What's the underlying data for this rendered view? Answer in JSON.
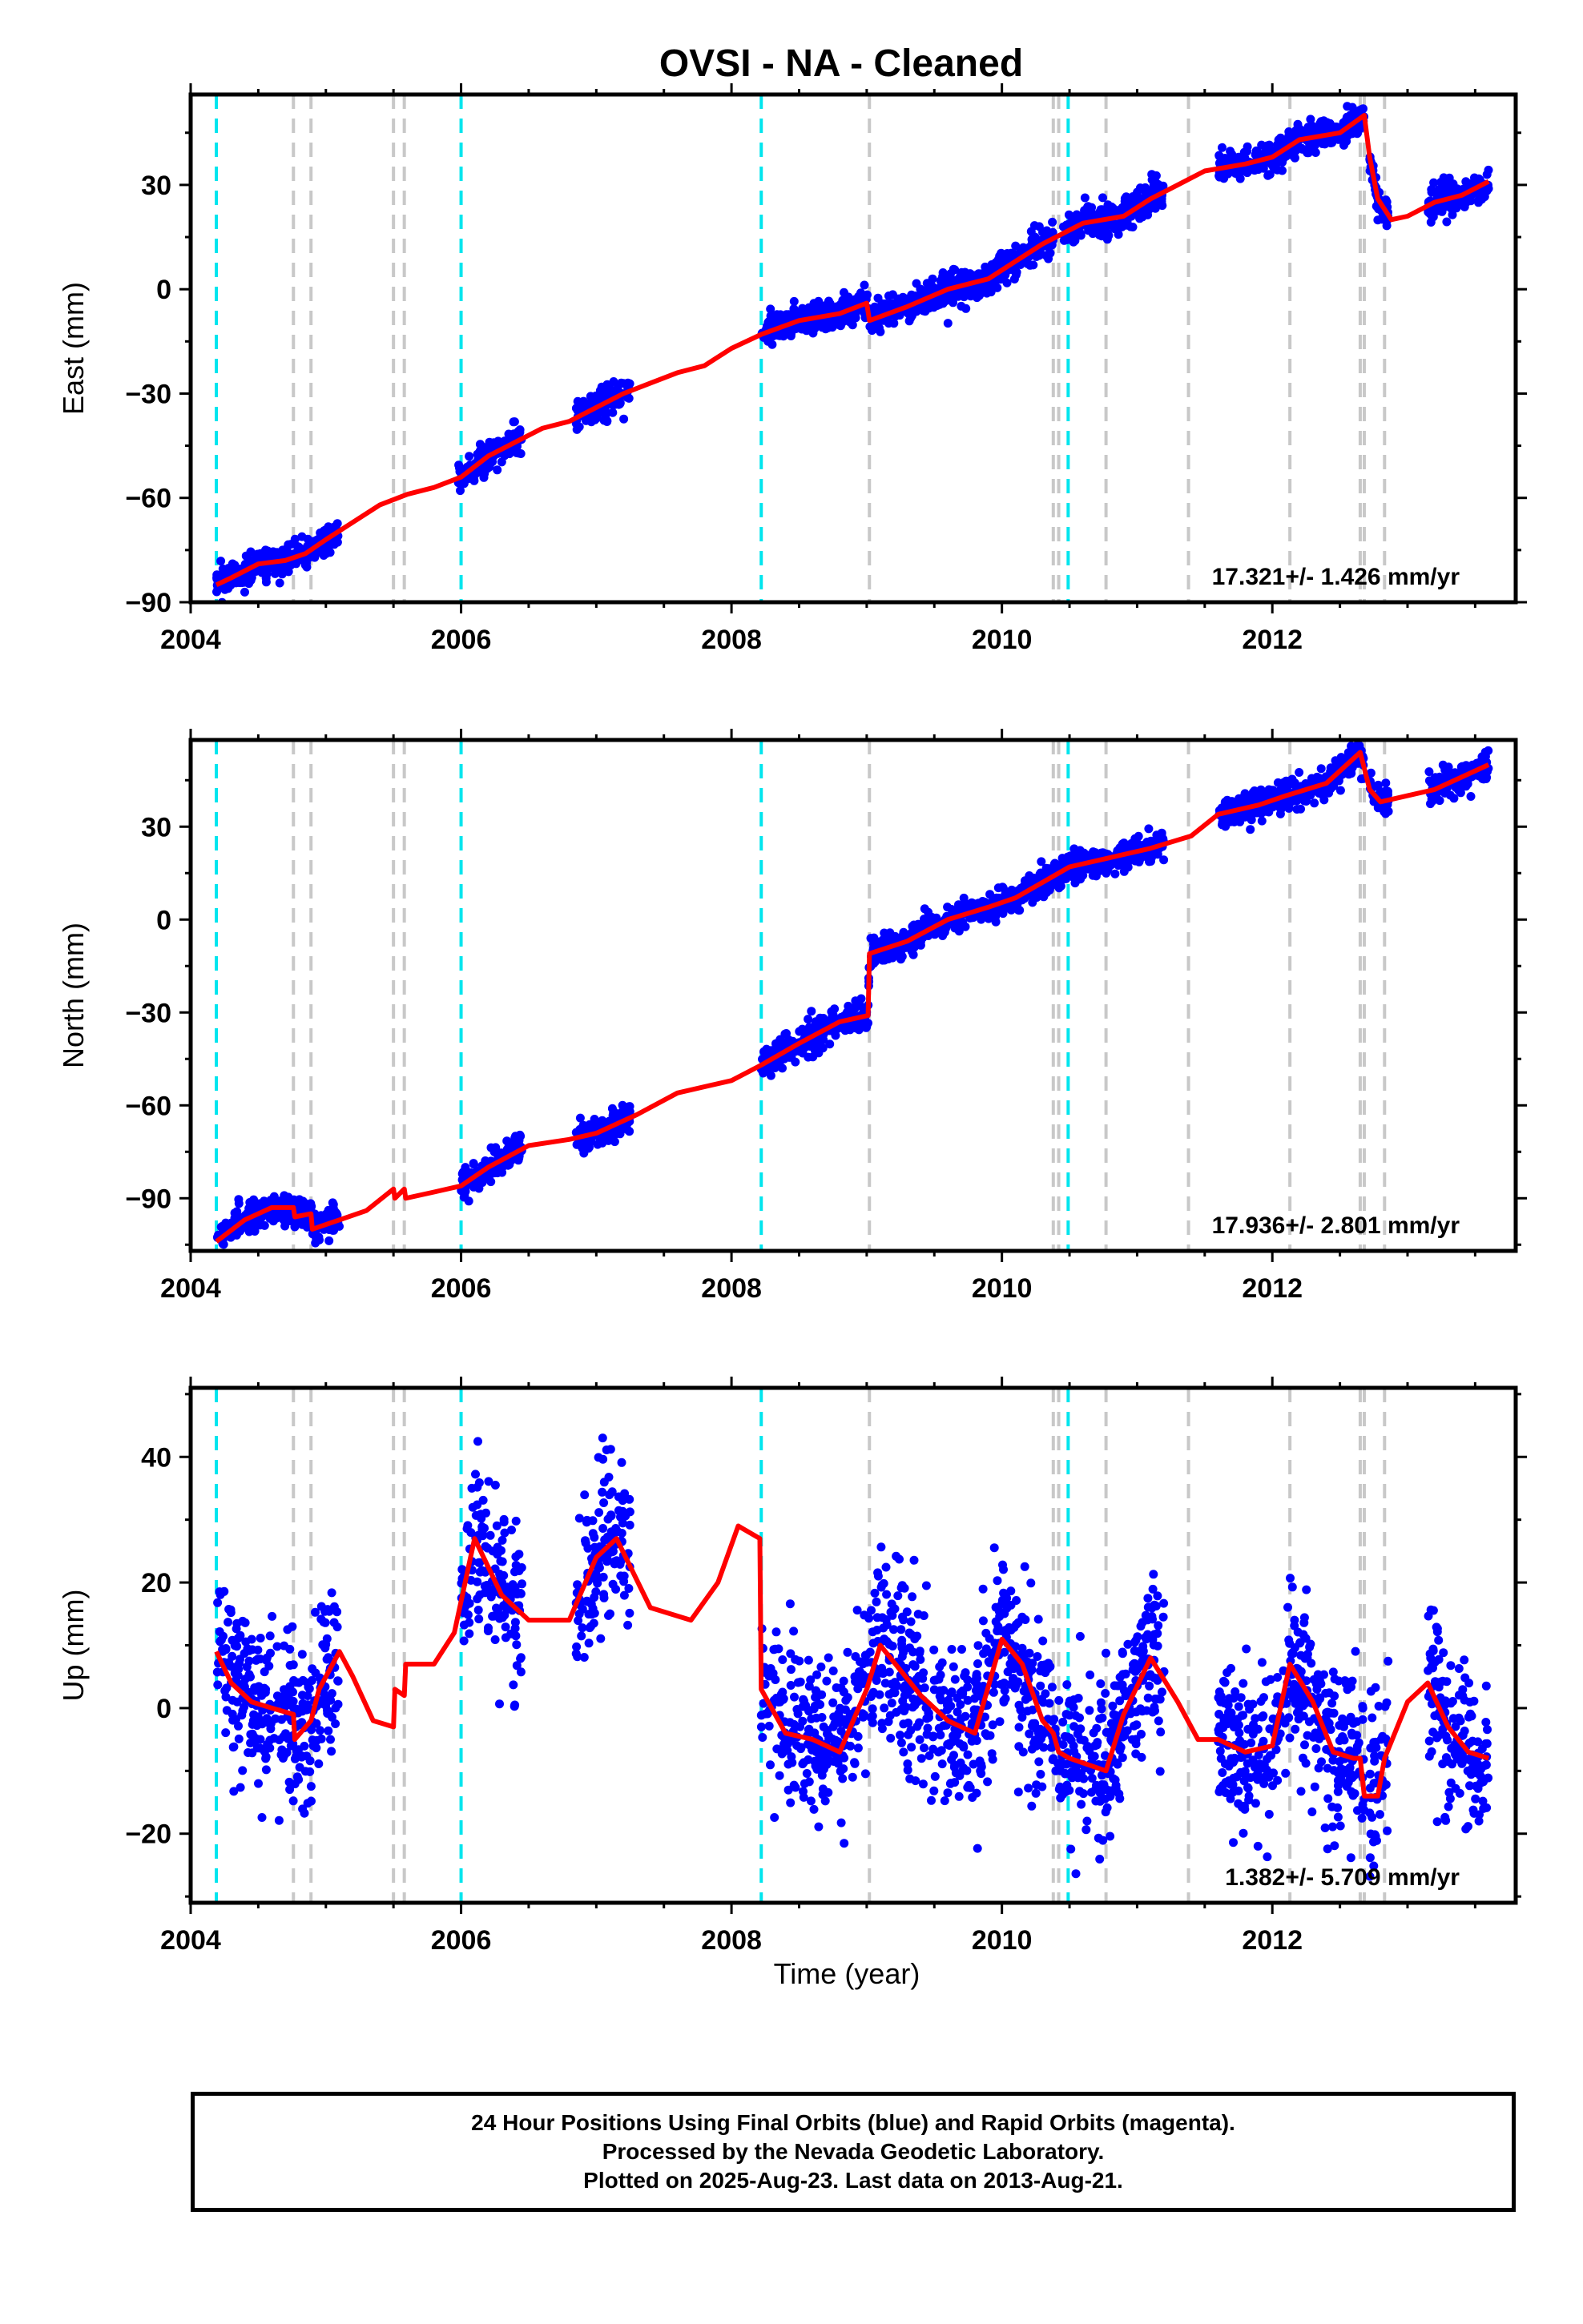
{
  "title": "OVSI  - NA - Cleaned",
  "xlabel": "Time (year)",
  "caption": [
    "24 Hour Positions Using Final Orbits (blue) and Rapid Orbits (magenta).",
    "Processed by the Nevada Geodetic Laboratory.",
    "Plotted on 2025-Aug-23. Last data on 2013-Aug-21."
  ],
  "colors": {
    "data": "#0000ff",
    "model": "#ff0000",
    "cyan_line": "#00e5ee",
    "gray_line": "#c8c8c8"
  },
  "chart_data": [
    {
      "type": "scatter",
      "ylabel": "East (mm)",
      "rate_label": "17.321+/- 1.426 mm/yr",
      "xlim": [
        2004.0,
        2013.8
      ],
      "ylim": [
        -90,
        56
      ],
      "xticks": [
        2004,
        2006,
        2008,
        2010,
        2012
      ],
      "xtick_labels": [
        "2004",
        "2006",
        "2008",
        "2010",
        "2012"
      ],
      "yticks": [
        -90,
        -60,
        -30,
        0,
        30
      ],
      "ytick_labels": [
        "−90",
        "−60",
        "−30",
        "0",
        "30"
      ],
      "cyan_lines": [
        2004.19,
        2006.0,
        2008.22,
        2010.49
      ],
      "gray_lines": [
        2004.76,
        2004.89,
        2005.5,
        2005.58,
        2009.02,
        2010.38,
        2010.42,
        2010.77,
        2011.38,
        2012.13,
        2012.65,
        2012.68,
        2012.83
      ],
      "series": [
        {
          "name": "model",
          "x": [
            2004.19,
            2004.3,
            2004.5,
            2004.7,
            2004.85,
            2005.0,
            2005.2,
            2005.4,
            2005.6,
            2005.8,
            2006.0,
            2006.2,
            2006.4,
            2006.6,
            2006.8,
            2007.0,
            2007.2,
            2007.4,
            2007.6,
            2007.8,
            2008.0,
            2008.22,
            2008.5,
            2008.8,
            2009.0,
            2009.02,
            2009.3,
            2009.6,
            2009.9,
            2010.1,
            2010.3,
            2010.45,
            2010.6,
            2010.9,
            2011.1,
            2011.3,
            2011.5,
            2011.8,
            2012.0,
            2012.2,
            2012.5,
            2012.68,
            2012.72,
            2012.78,
            2012.88,
            2013.0,
            2013.2,
            2013.4,
            2013.6
          ],
          "y": [
            -85,
            -83,
            -79,
            -78,
            -76,
            -72,
            -67,
            -62,
            -59,
            -57,
            -54,
            -48,
            -44,
            -40,
            -38,
            -34,
            -30,
            -27,
            -24,
            -22,
            -17,
            -13,
            -9,
            -7,
            -4,
            -9,
            -5,
            0,
            3,
            8,
            13,
            16,
            19,
            21,
            26,
            30,
            34,
            36,
            38,
            43,
            45,
            50,
            38,
            26,
            20,
            21,
            25,
            27,
            31
          ]
        },
        {
          "name": "data",
          "ranges": [
            [
              2004.19,
              2005.1
            ],
            [
              2005.98,
              2006.45
            ],
            [
              2006.85,
              2007.25
            ],
            [
              2008.22,
              2010.38
            ],
            [
              2010.45,
              2011.2
            ],
            [
              2011.6,
              2012.68
            ],
            [
              2012.72,
              2012.86
            ],
            [
              2013.15,
              2013.6
            ]
          ],
          "noise": 2.2
        }
      ]
    },
    {
      "type": "scatter",
      "ylabel": "North (mm)",
      "rate_label": "17.936+/- 2.801 mm/yr",
      "xlim": [
        2004.0,
        2013.8
      ],
      "ylim": [
        -107,
        58
      ],
      "xticks": [
        2004,
        2006,
        2008,
        2010,
        2012
      ],
      "xtick_labels": [
        "2004",
        "2006",
        "2008",
        "2010",
        "2012"
      ],
      "yticks": [
        -90,
        -60,
        -30,
        0,
        30
      ],
      "ytick_labels": [
        "−90",
        "−60",
        "−30",
        "0",
        "30"
      ],
      "cyan_lines": [
        2004.19,
        2006.0,
        2008.22,
        2010.49
      ],
      "gray_lines": [
        2004.76,
        2004.89,
        2005.5,
        2005.58,
        2009.02,
        2010.38,
        2010.42,
        2010.77,
        2011.38,
        2012.13,
        2012.65,
        2012.68,
        2012.83
      ],
      "series": [
        {
          "name": "model",
          "x": [
            2004.19,
            2004.4,
            2004.6,
            2004.76,
            2004.77,
            2004.89,
            2004.9,
            2005.1,
            2005.3,
            2005.5,
            2005.51,
            2005.58,
            2005.59,
            2005.8,
            2006.0,
            2006.2,
            2006.5,
            2006.8,
            2007.0,
            2007.3,
            2007.6,
            2008.0,
            2008.22,
            2008.5,
            2008.8,
            2009.01,
            2009.02,
            2009.3,
            2009.6,
            2009.9,
            2010.1,
            2010.3,
            2010.5,
            2010.8,
            2011.1,
            2011.4,
            2011.6,
            2011.9,
            2012.1,
            2012.4,
            2012.65,
            2012.72,
            2012.8,
            2013.0,
            2013.2,
            2013.4,
            2013.6
          ],
          "y": [
            -104,
            -97,
            -93,
            -93,
            -96,
            -95,
            -100,
            -97,
            -94,
            -87,
            -90,
            -87,
            -90,
            -88,
            -86,
            -80,
            -73,
            -71,
            -69,
            -63,
            -56,
            -52,
            -47,
            -40,
            -33,
            -31,
            -11,
            -7,
            0,
            4,
            7,
            12,
            17,
            20,
            23,
            27,
            34,
            37,
            40,
            44,
            54,
            42,
            38,
            40,
            42,
            46,
            50
          ]
        },
        {
          "name": "data",
          "ranges": [
            [
              2004.19,
              2005.1
            ],
            [
              2006.0,
              2006.45
            ],
            [
              2006.85,
              2007.25
            ],
            [
              2008.22,
              2011.2
            ],
            [
              2011.6,
              2012.68
            ],
            [
              2012.72,
              2012.86
            ],
            [
              2013.15,
              2013.6
            ]
          ],
          "noise": 2.3
        }
      ]
    },
    {
      "type": "scatter",
      "ylabel": "Up (mm)",
      "rate_label": "1.382+/- 5.709 mm/yr",
      "xlim": [
        2004.0,
        2013.8
      ],
      "ylim": [
        -31,
        51
      ],
      "xticks": [
        2004,
        2006,
        2008,
        2010,
        2012
      ],
      "xtick_labels": [
        "2004",
        "2006",
        "2008",
        "2010",
        "2012"
      ],
      "yticks": [
        -20,
        0,
        20,
        40
      ],
      "ytick_labels": [
        "−20",
        "0",
        "20",
        "40"
      ],
      "cyan_lines": [
        2004.19,
        2006.0,
        2008.22,
        2010.49
      ],
      "gray_lines": [
        2004.76,
        2004.89,
        2005.5,
        2005.58,
        2009.02,
        2010.38,
        2010.42,
        2010.77,
        2011.38,
        2012.13,
        2012.65,
        2012.68,
        2012.83
      ],
      "series": [
        {
          "name": "model",
          "x": [
            2004.19,
            2004.3,
            2004.45,
            2004.6,
            2004.76,
            2004.77,
            2004.89,
            2004.95,
            2005.1,
            2005.2,
            2005.35,
            2005.5,
            2005.51,
            2005.58,
            2005.59,
            2005.8,
            2005.95,
            2006.1,
            2006.3,
            2006.5,
            2006.8,
            2007.0,
            2007.15,
            2007.4,
            2007.7,
            2007.9,
            2008.05,
            2008.21,
            2008.22,
            2008.4,
            2008.6,
            2008.8,
            2009.0,
            2009.1,
            2009.4,
            2009.6,
            2009.8,
            2010.0,
            2010.15,
            2010.3,
            2010.38,
            2010.42,
            2010.5,
            2010.77,
            2010.9,
            2011.1,
            2011.3,
            2011.45,
            2011.6,
            2011.8,
            2012.0,
            2012.13,
            2012.3,
            2012.45,
            2012.6,
            2012.65,
            2012.68,
            2012.78,
            2012.83,
            2013.0,
            2013.15,
            2013.3,
            2013.45,
            2013.6
          ],
          "y": [
            9,
            4,
            1,
            0,
            -1,
            -5,
            -2,
            3,
            9,
            5,
            -2,
            -3,
            3,
            2,
            7,
            7,
            12,
            27,
            18,
            14,
            14,
            24,
            27,
            16,
            14,
            20,
            29,
            27,
            3,
            -4,
            -5,
            -7,
            3,
            10,
            2,
            -2,
            -4,
            11,
            7,
            -2,
            -4,
            -7,
            -8,
            -10,
            -1,
            8,
            1,
            -5,
            -5,
            -7,
            -6,
            7,
            1,
            -7,
            -8,
            -8,
            -14,
            -14,
            -8,
            1,
            4,
            -3,
            -7,
            -8
          ]
        },
        {
          "name": "data",
          "ranges": [
            [
              2004.19,
              2005.1
            ],
            [
              2006.0,
              2006.45
            ],
            [
              2006.85,
              2007.25
            ],
            [
              2008.22,
              2011.2
            ],
            [
              2011.6,
              2012.68
            ],
            [
              2012.72,
              2012.86
            ],
            [
              2013.15,
              2013.6
            ]
          ],
          "noise": 6.5
        }
      ]
    }
  ]
}
